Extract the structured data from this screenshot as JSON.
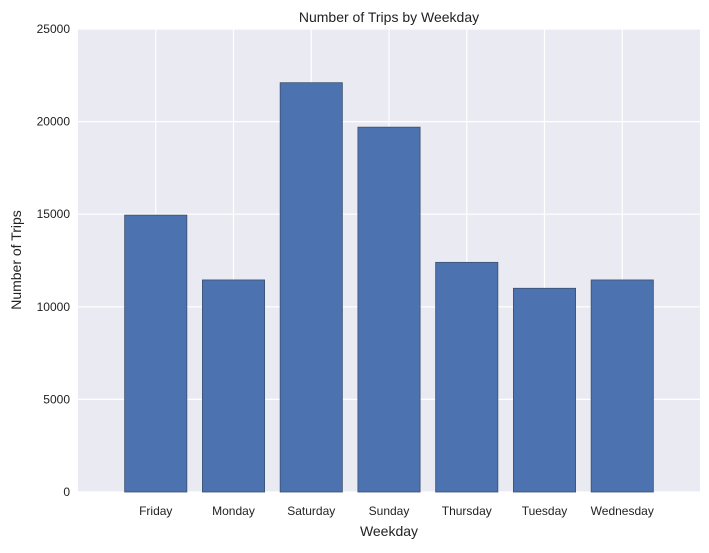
{
  "chart_data": {
    "type": "bar",
    "title": "Number of Trips by Weekday",
    "xlabel": "Weekday",
    "ylabel": "Number of Trips",
    "categories": [
      "Friday",
      "Monday",
      "Saturday",
      "Sunday",
      "Thursday",
      "Tuesday",
      "Wednesday"
    ],
    "values": [
      14950,
      11450,
      22100,
      19700,
      12400,
      11000,
      11450
    ],
    "ylim": [
      0,
      25000
    ],
    "yticks": [
      0,
      5000,
      10000,
      15000,
      20000,
      25000
    ],
    "ytick_labels": [
      "0",
      "5000",
      "10000",
      "15000",
      "20000",
      "25000"
    ],
    "grid": true,
    "colors": {
      "bar": "#4c72b0",
      "bar_edge": "#3b4f70",
      "plot_background": "#eaeaf2",
      "grid": "#ffffff"
    }
  }
}
